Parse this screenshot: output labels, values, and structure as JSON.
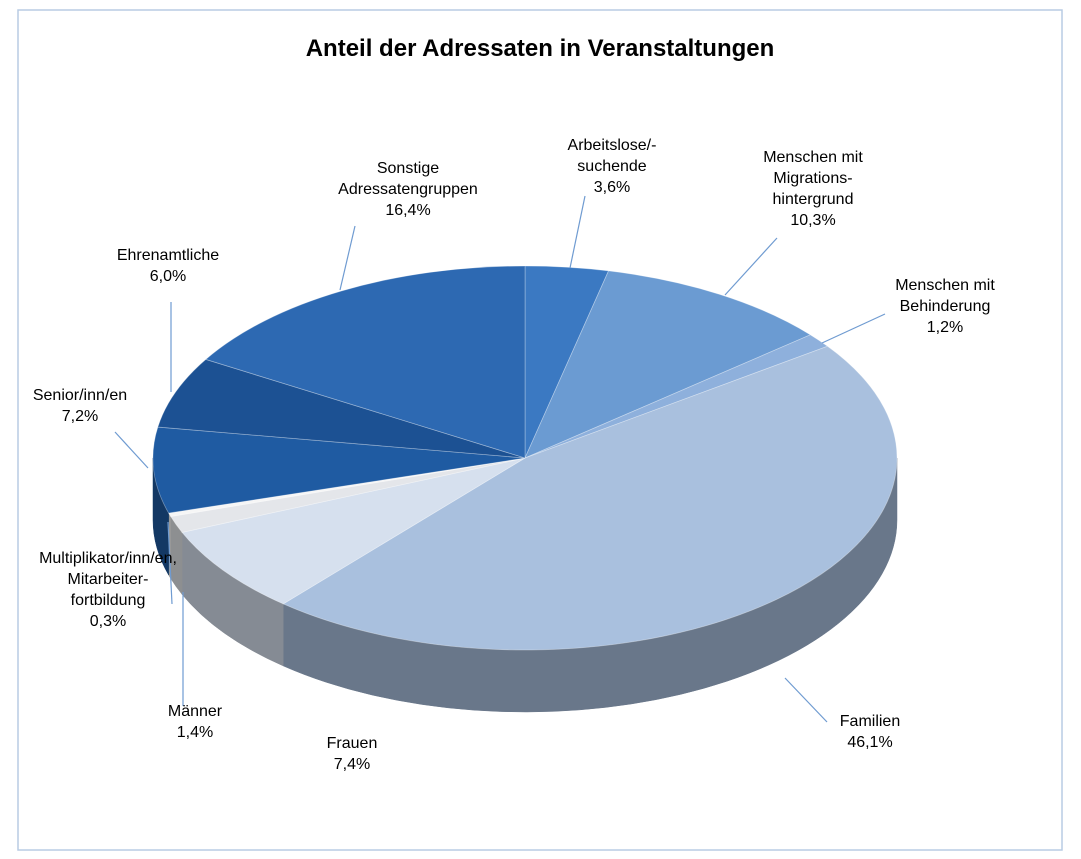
{
  "chart_data": {
    "type": "pie3d",
    "title": "Anteil der Adressaten in Veranstaltungen",
    "categories": [
      [
        "Arbeitslose/-",
        "suchende"
      ],
      [
        "Menschen mit",
        "Migrations-",
        "hintergrund"
      ],
      [
        "Menschen mit",
        "Behinderung"
      ],
      [
        "Familien"
      ],
      [
        "Frauen"
      ],
      [
        "Männer"
      ],
      [
        "Multiplikator/inn/en,",
        "Mitarbeiter-",
        "fortbildung"
      ],
      [
        "Senior/inn/en"
      ],
      [
        "Ehrenamtliche"
      ],
      [
        "Sonstige",
        "Adressatengruppen"
      ]
    ],
    "values": [
      3.6,
      10.3,
      1.2,
      46.1,
      7.4,
      1.4,
      0.3,
      7.2,
      6.0,
      16.4
    ],
    "value_labels": [
      "3,6%",
      "10,3%",
      "1,2%",
      "46,1%",
      "7,4%",
      "1,4%",
      "0,3%",
      "7,2%",
      "6,0%",
      "16,4%"
    ],
    "colors": [
      "#3b79c2",
      "#6b9bd2",
      "#8eb0dc",
      "#a9c0de",
      "#d6e0ee",
      "#e4e6ea",
      "#f6f6f6",
      "#1f5ba2",
      "#1c5193",
      "#2d69b2"
    ]
  }
}
